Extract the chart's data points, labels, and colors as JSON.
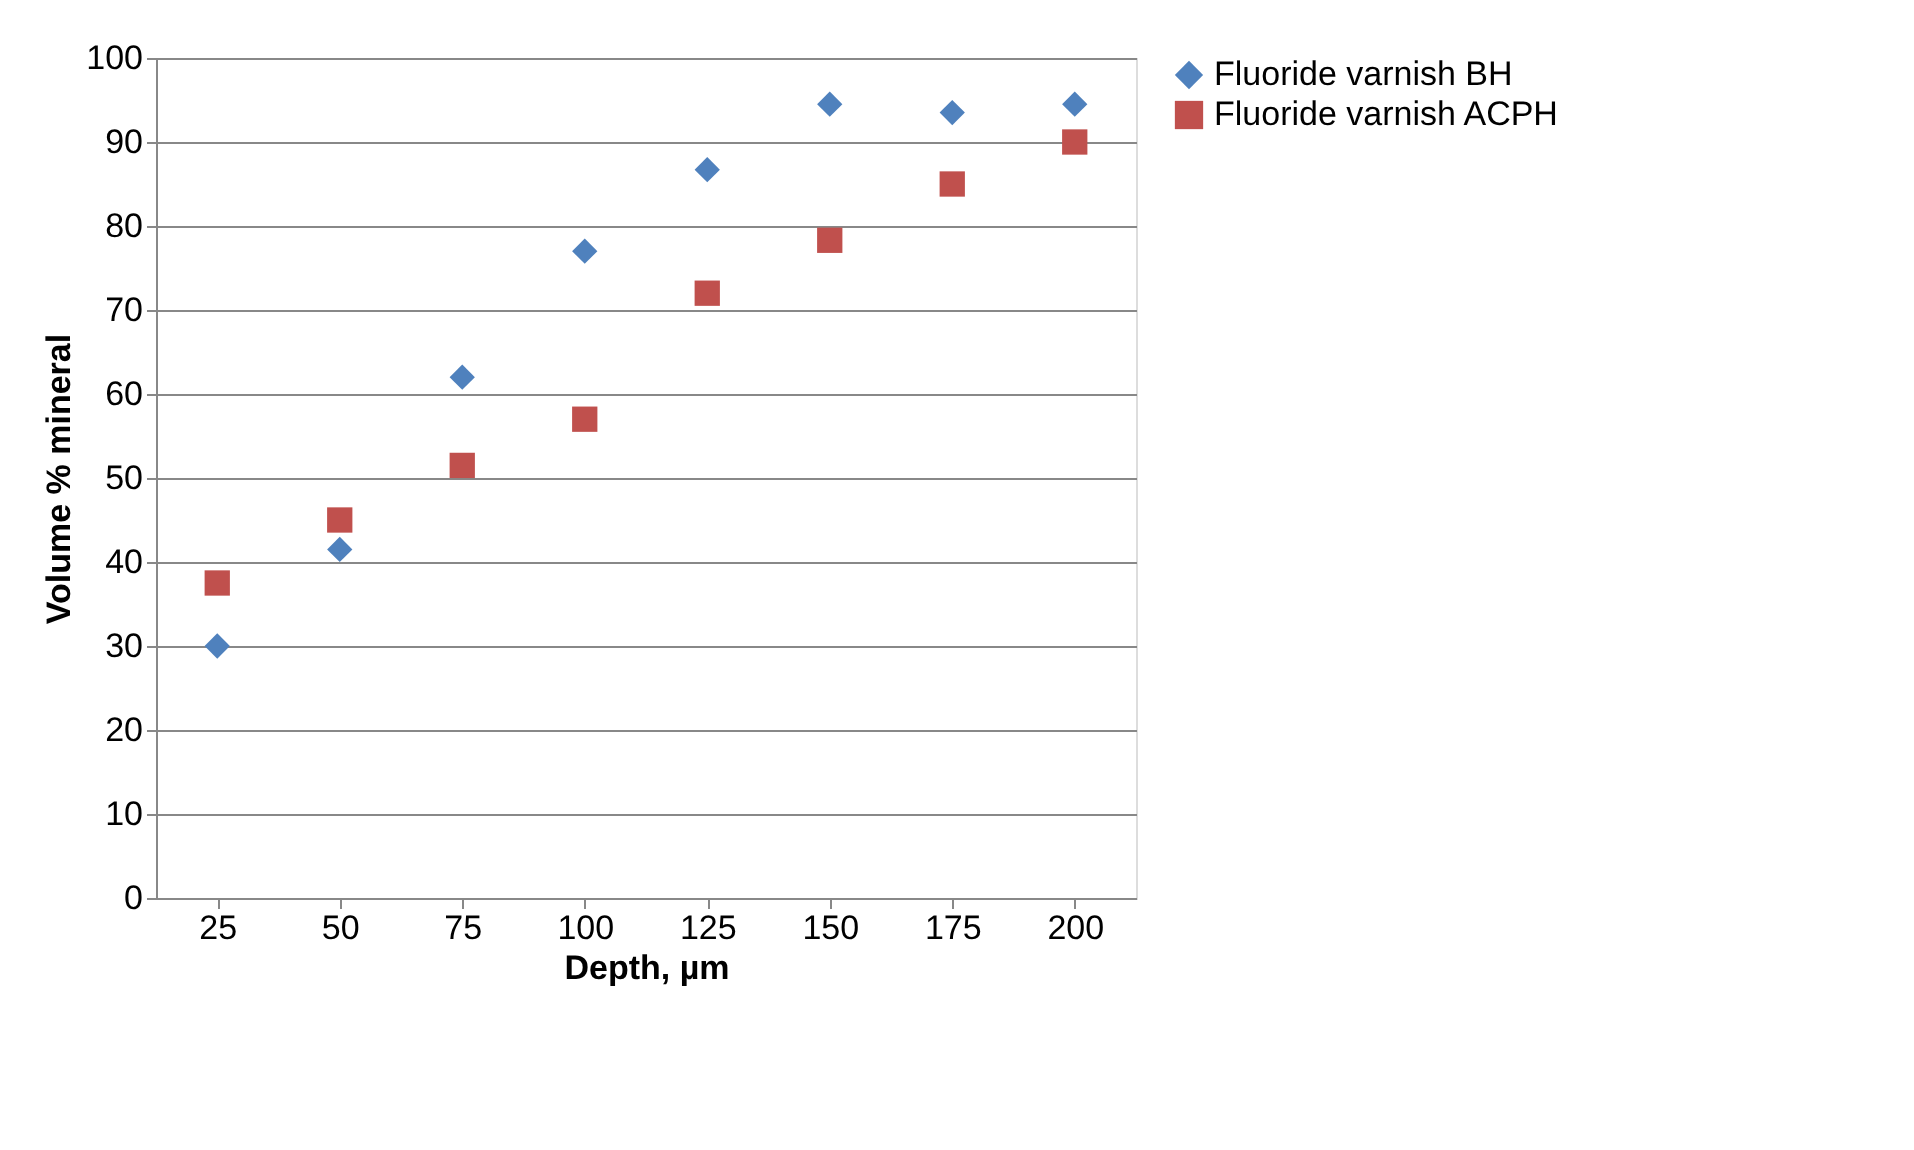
{
  "chart_data": {
    "type": "scatter",
    "xlabel": "Depth, µm",
    "ylabel": "Volume % mineral",
    "categories": [
      "25",
      "50",
      "75",
      "100",
      "125",
      "150",
      "175",
      "200"
    ],
    "series": [
      {
        "name": "Fluoride varnish BH",
        "color": "#4f81bd",
        "marker": "diamond",
        "values": [
          30,
          41.5,
          62,
          77,
          86.7,
          94.5,
          93.5,
          94.5
        ]
      },
      {
        "name": "Fluoride varnish ACPH",
        "color": "#c0504d",
        "marker": "square",
        "values": [
          37.5,
          45,
          51.5,
          57,
          72,
          78.3,
          85,
          90
        ]
      }
    ],
    "ylim": [
      0,
      100
    ],
    "yticks": [
      0,
      10,
      20,
      30,
      40,
      50,
      60,
      70,
      80,
      90,
      100
    ],
    "grid": "y",
    "legend": "right"
  }
}
